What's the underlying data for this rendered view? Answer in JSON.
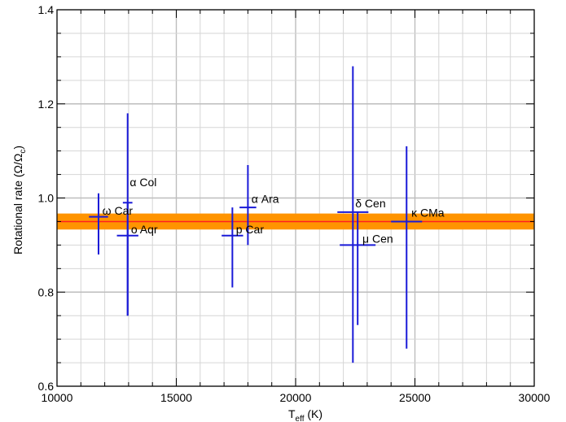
{
  "chart_data": {
    "type": "scatter",
    "title": "",
    "xlabel": "T_eff (K)",
    "xlabel_main": "T",
    "xlabel_sub": "eff",
    "xlabel_unit": " (K)",
    "ylabel": "Rotational rate (Ω/Ω_c)",
    "ylabel_main": "Rotational rate (Ω/Ω",
    "ylabel_sub": "c",
    "ylabel_close": ")",
    "xlim": [
      10000,
      30000
    ],
    "ylim": [
      0.6,
      1.4
    ],
    "xticks": [
      10000,
      15000,
      20000,
      25000,
      30000
    ],
    "xtick_labels": [
      "10000",
      "15000",
      "20000",
      "25000",
      "30000"
    ],
    "yticks": [
      0.6,
      0.8,
      1.0,
      1.2,
      1.4
    ],
    "ytick_labels": [
      "0.6",
      "0.8",
      "1.0",
      "1.2",
      "1.4"
    ],
    "x_minor_step": 1000,
    "y_minor_step": 0.05,
    "grid": true,
    "band": {
      "y_low": 0.933,
      "y_high": 0.967,
      "mean": 0.95,
      "color": "#ff9400",
      "line_color": "#ff2020"
    },
    "point_color": "#1a1ad8",
    "points": [
      {
        "name": "ω Car",
        "x": 11740,
        "xerr": 400,
        "y": 0.96,
        "ylow": 0.88,
        "yhigh": 1.01,
        "label_x": 11900,
        "label_y": 0.965
      },
      {
        "name": "α Col",
        "x": 12960,
        "xerr": 200,
        "y": 0.99,
        "ylow": 0.75,
        "yhigh": 1.18,
        "label_x": 13050,
        "label_y": 1.025
      },
      {
        "name": "o Aqr",
        "x": 12960,
        "xerr": 450,
        "y": 0.92,
        "ylow": 0.75,
        "yhigh": 0.99,
        "label_x": 13100,
        "label_y": 0.925
      },
      {
        "name": "p Car",
        "x": 17350,
        "xerr": 450,
        "y": 0.92,
        "ylow": 0.81,
        "yhigh": 0.98,
        "label_x": 17500,
        "label_y": 0.925
      },
      {
        "name": "α Ara",
        "x": 18000,
        "xerr": 350,
        "y": 0.98,
        "ylow": 0.9,
        "yhigh": 1.07,
        "label_x": 18150,
        "label_y": 0.99
      },
      {
        "name": "δ Cen",
        "x": 22400,
        "xerr": 650,
        "y": 0.97,
        "ylow": 0.65,
        "yhigh": 1.28,
        "label_x": 22500,
        "label_y": 0.98
      },
      {
        "name": "μ Cen",
        "x": 22600,
        "xerr": 750,
        "y": 0.9,
        "ylow": 0.73,
        "yhigh": 0.97,
        "label_x": 22800,
        "label_y": 0.905
      },
      {
        "name": "κ CMa",
        "x": 24650,
        "xerr": 650,
        "y": 0.95,
        "ylow": 0.68,
        "yhigh": 1.11,
        "label_x": 24850,
        "label_y": 0.96
      }
    ]
  }
}
